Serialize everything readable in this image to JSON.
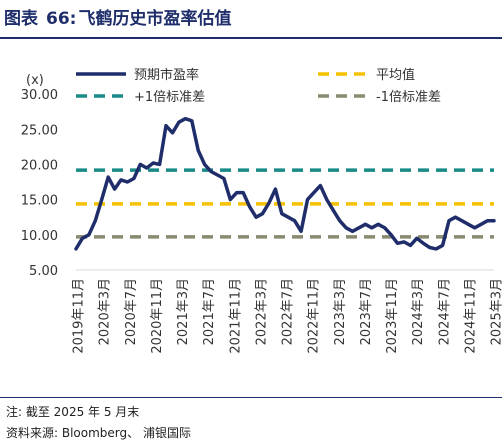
{
  "header": {
    "label": "图表",
    "number": "66:",
    "title": "飞鹤历史市盈率估值"
  },
  "footer": {
    "note": "注: 截至 2025 年 5 月末",
    "source": "资料来源: Bloomberg、  浦银国际"
  },
  "chart_data": {
    "type": "line",
    "ylabel": "(x)",
    "ylim": [
      5,
      32
    ],
    "yticks": [
      "30.00",
      "25.00",
      "20.00",
      "15.00",
      "10.00",
      "5.00"
    ],
    "xtick_labels": [
      "2019年11月",
      "2020年3月",
      "2020年7月",
      "2020年11月",
      "2021年3月",
      "2021年7月",
      "2021年11月",
      "2022年3月",
      "2022年7月",
      "2022年11月",
      "2023年3月",
      "2023年7月",
      "2023年11月",
      "2024年3月",
      "2024年7月",
      "2024年11月",
      "2025年3月"
    ],
    "legend": [
      "预期市盈率",
      "平均值",
      "+1倍标准差",
      "-1倍标准差"
    ],
    "series": [
      {
        "name": "预期市盈率",
        "color": "#1f2e6b",
        "values": [
          8.0,
          9.5,
          10.0,
          12.0,
          15.0,
          18.2,
          16.5,
          17.8,
          17.5,
          18.0,
          20.0,
          19.5,
          20.2,
          20.0,
          25.5,
          24.5,
          26.0,
          26.5,
          26.2,
          22.0,
          20.0,
          19.0,
          18.5,
          18.0,
          15.0,
          16.0,
          16.0,
          14.0,
          12.5,
          13.0,
          14.5,
          16.5,
          13.0,
          12.5,
          12.0,
          10.5,
          15.0,
          16.0,
          17.0,
          15.0,
          13.5,
          12.0,
          11.0,
          10.5,
          11.0,
          11.5,
          11.0,
          11.5,
          11.0,
          10.0,
          8.8,
          9.0,
          8.5,
          9.5,
          8.8,
          8.2,
          8.0,
          8.5,
          12.0,
          12.5,
          12.0,
          11.5,
          11.0,
          11.5,
          12.0,
          12.0
        ]
      },
      {
        "name": "平均值",
        "color": "#f5c000",
        "value": 14.4
      },
      {
        "name": "+1倍标准差",
        "color": "#1a8a86",
        "value": 19.2
      },
      {
        "name": "-1倍标准差",
        "color": "#8a8a70",
        "value": 9.7
      }
    ]
  }
}
